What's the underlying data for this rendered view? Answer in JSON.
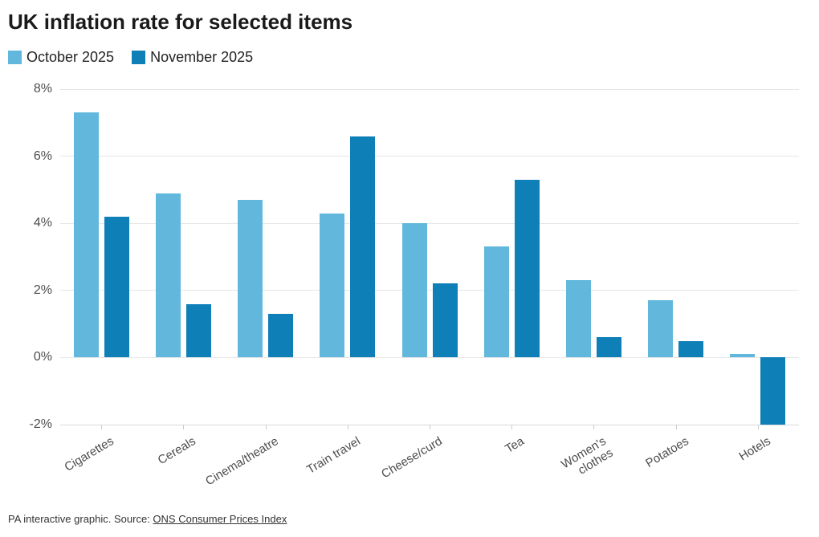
{
  "title": "UK inflation rate for selected items",
  "legend": {
    "items": [
      {
        "label": "October 2025",
        "color": "#62b8dc"
      },
      {
        "label": "November 2025",
        "color": "#0f80b7"
      }
    ]
  },
  "footer": {
    "text": "PA interactive graphic. Source: ",
    "link_text": "ONS Consumer Prices Index"
  },
  "chart_data": {
    "type": "bar",
    "title": "UK inflation rate for selected items",
    "categories": [
      "Cigarettes",
      "Cereals",
      "Cinema/theatre",
      "Train travel",
      "Cheese/curd",
      "Tea",
      "Women's clothes",
      "Potatoes",
      "Hotels"
    ],
    "series": [
      {
        "name": "October 2025",
        "color": "#62b8dc",
        "values": [
          7.3,
          4.9,
          4.7,
          4.3,
          4.0,
          3.3,
          2.3,
          1.7,
          0.1
        ]
      },
      {
        "name": "November 2025",
        "color": "#0f80b7",
        "values": [
          4.2,
          1.6,
          1.3,
          6.6,
          2.2,
          5.3,
          0.6,
          0.5,
          -2.0
        ]
      }
    ],
    "xlabel": "",
    "ylabel": "",
    "ylim": [
      -2,
      8
    ],
    "yticks": [
      8,
      6,
      4,
      2,
      0,
      -2
    ],
    "ytick_suffix": "%",
    "grid": true,
    "legend_position": "top-left"
  },
  "colors": {
    "october_bar": "#62b8dc",
    "november_bar": "#0f80b7",
    "gridline": "#e6e6e6",
    "axis_text": "#4d4d4d",
    "title_text": "#1a1a1a",
    "footer_text": "#333333"
  }
}
